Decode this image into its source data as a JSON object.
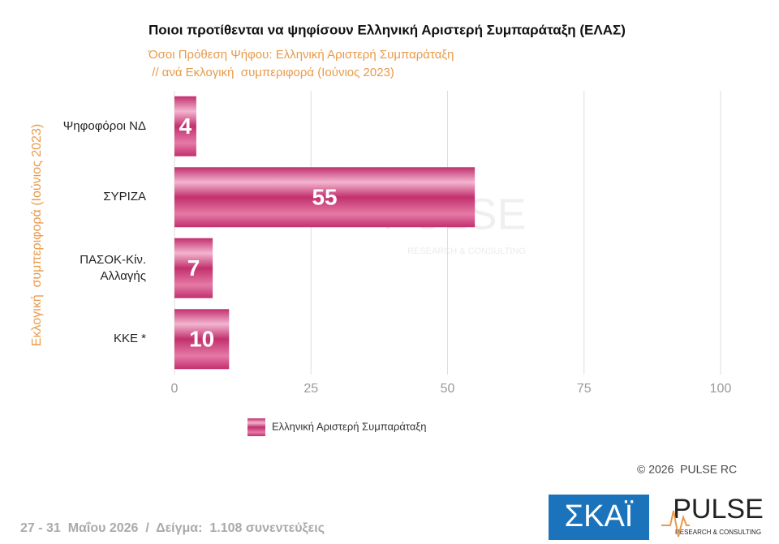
{
  "chart_data": {
    "type": "bar",
    "orientation": "horizontal",
    "title": "Ποιοι προτίθενται να ψηφίσουν Ελληνική Αριστερή Συμπαράταξη (ΕΛΑΣ)",
    "subtitle": [
      "Όσοι Πρόθεση Ψήφου: Ελληνική Αριστερή Συμπαράταξη",
      " // ανά Εκλογική  συμπεριφορά (Ιούνιος 2023)"
    ],
    "y_label": "Εκλογική  συμπεριφορά (Ιούνιος 2023)",
    "categories": [
      "Ψηφοφόροι ΝΔ",
      "ΣΥΡΙΖΑ",
      "ΠΑΣΟΚ-Κίν. Αλλαγής",
      "ΚΚΕ *"
    ],
    "series": [
      {
        "name": "Ελληνική Αριστερή Συμπαράταξη",
        "color": "#c2306e",
        "values": [
          4,
          55,
          7,
          10
        ]
      }
    ],
    "xlim": [
      0,
      100
    ],
    "xticks": [
      0,
      25,
      50,
      75,
      100
    ],
    "grid": true
  },
  "copyright": "© 2026  PULSE RC",
  "footer": "27 - 31  Μαΐου 2026  /  Δείγμα:  1.108 συνεντεύξεις",
  "watermark": {
    "name": "PULSE",
    "tagline": "RESEARCH & CONSULTING"
  },
  "logos": {
    "skai": "ΣΚΑΪ",
    "pulse": "PULSE",
    "pulse_tagline": "RESEARCH & CONSULTING"
  }
}
